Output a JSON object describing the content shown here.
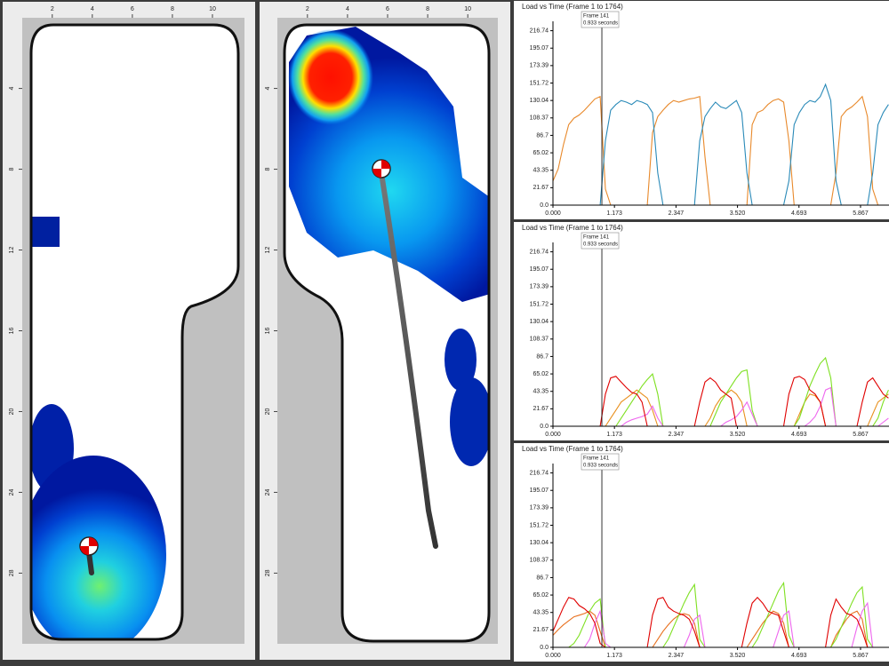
{
  "foot_maps": [
    {
      "xlim": [
        0.5,
        11.6
      ],
      "ylim": [
        0.5,
        31.5
      ],
      "xticks": [
        2,
        4,
        6,
        8,
        10
      ],
      "yticks": [
        4,
        8,
        12,
        16,
        20,
        24,
        28
      ]
    },
    {
      "xlim": [
        0.5,
        11.5
      ],
      "ylim": [
        0.5,
        31.5
      ],
      "xticks": [
        2,
        4,
        6,
        8,
        10
      ],
      "yticks": [
        4,
        8,
        12,
        16,
        20,
        24,
        28
      ]
    }
  ],
  "chart_data": [
    {
      "type": "line",
      "title": "Load vs Time (Frame 1 to 1764)",
      "marker": {
        "x": 0.933,
        "frame_label": "Frame 141",
        "time_label": "0.933 seconds"
      },
      "xlim": [
        0,
        6.41
      ],
      "ylim": [
        0,
        224
      ],
      "xticks": [
        {
          "value": 0,
          "label": "0.000"
        },
        1.173,
        2.347,
        {
          "value": 3.52,
          "label": "3.520"
        },
        4.693,
        5.867
      ],
      "yticks": [
        {
          "value": 0,
          "label": "0.0"
        },
        21.67,
        43.35,
        65.02,
        86.7,
        108.37,
        130.04,
        151.72,
        173.39,
        195.07,
        216.74
      ],
      "grid": false,
      "x": [
        0,
        0.1,
        0.2,
        0.3,
        0.4,
        0.5,
        0.6,
        0.7,
        0.8,
        0.9,
        1,
        1.1,
        1.2,
        1.3,
        1.4,
        1.5,
        1.6,
        1.7,
        1.8,
        1.9,
        2,
        2.1,
        2.2,
        2.3,
        2.4,
        2.5,
        2.6,
        2.7,
        2.8,
        2.9,
        3,
        3.1,
        3.2,
        3.3,
        3.4,
        3.5,
        3.6,
        3.7,
        3.8,
        3.9,
        4,
        4.1,
        4.2,
        4.3,
        4.4,
        4.5,
        4.6,
        4.7,
        4.8,
        4.9,
        5,
        5.1,
        5.2,
        5.3,
        5.4,
        5.5,
        5.6,
        5.7,
        5.8,
        5.9,
        6,
        6.1,
        6.2,
        6.3,
        6.4
      ],
      "series": [
        {
          "color": "#e8892b",
          "values": [
            30,
            45,
            75,
            100,
            108,
            112,
            118,
            125,
            132,
            135,
            20,
            0,
            0,
            0,
            0,
            0,
            0,
            0,
            0,
            90,
            110,
            118,
            125,
            130,
            128,
            130,
            132,
            133,
            135,
            60,
            0,
            0,
            0,
            0,
            0,
            0,
            0,
            0,
            100,
            115,
            118,
            125,
            130,
            132,
            128,
            80,
            0,
            0,
            0,
            0,
            0,
            0,
            0,
            0,
            40,
            110,
            118,
            122,
            128,
            135,
            110,
            20,
            0,
            0,
            0
          ]
        },
        {
          "color": "#2a8ab8",
          "values": [
            0,
            0,
            0,
            0,
            0,
            0,
            0,
            0,
            0,
            0,
            80,
            118,
            125,
            130,
            128,
            125,
            130,
            128,
            125,
            115,
            40,
            0,
            0,
            0,
            0,
            0,
            0,
            0,
            80,
            110,
            120,
            128,
            122,
            120,
            125,
            130,
            115,
            40,
            0,
            0,
            0,
            0,
            0,
            0,
            0,
            30,
            100,
            115,
            125,
            130,
            128,
            135,
            150,
            130,
            30,
            0,
            0,
            0,
            0,
            0,
            0,
            40,
            100,
            115,
            125
          ]
        }
      ]
    },
    {
      "type": "line",
      "title": "Load vs Time (Frame 1 to 1764)",
      "marker": {
        "x": 0.933,
        "frame_label": "Frame 141",
        "time_label": "0.933 seconds"
      },
      "xlim": [
        0,
        6.41
      ],
      "ylim": [
        0,
        224
      ],
      "xticks": [
        {
          "value": 0,
          "label": "0.000"
        },
        1.173,
        2.347,
        {
          "value": 3.52,
          "label": "3.520"
        },
        4.693,
        5.867
      ],
      "yticks": [
        {
          "value": 0,
          "label": "0.0"
        },
        21.67,
        43.35,
        65.02,
        86.7,
        108.37,
        130.04,
        151.72,
        173.39,
        195.07,
        216.74
      ],
      "grid": false,
      "x": [
        0,
        0.1,
        0.2,
        0.3,
        0.4,
        0.5,
        0.6,
        0.7,
        0.8,
        0.9,
        1,
        1.1,
        1.2,
        1.3,
        1.4,
        1.5,
        1.6,
        1.7,
        1.8,
        1.9,
        2,
        2.1,
        2.2,
        2.3,
        2.4,
        2.5,
        2.6,
        2.7,
        2.8,
        2.9,
        3,
        3.1,
        3.2,
        3.3,
        3.4,
        3.5,
        3.6,
        3.7,
        3.8,
        3.9,
        4,
        4.1,
        4.2,
        4.3,
        4.4,
        4.5,
        4.6,
        4.7,
        4.8,
        4.9,
        5,
        5.1,
        5.2,
        5.3,
        5.4,
        5.5,
        5.6,
        5.7,
        5.8,
        5.9,
        6,
        6.1,
        6.2,
        6.3,
        6.4
      ],
      "series": [
        {
          "color": "#e8901e",
          "values": [
            0,
            0,
            0,
            0,
            0,
            0,
            0,
            0,
            0,
            0,
            0,
            10,
            20,
            30,
            35,
            40,
            45,
            40,
            35,
            20,
            0,
            0,
            0,
            0,
            0,
            0,
            0,
            0,
            0,
            0,
            10,
            25,
            35,
            40,
            45,
            40,
            30,
            0,
            0,
            0,
            0,
            0,
            0,
            0,
            0,
            0,
            0,
            15,
            30,
            40,
            38,
            30,
            0,
            0,
            0,
            0,
            0,
            0,
            0,
            0,
            0,
            15,
            30,
            35,
            40
          ]
        },
        {
          "color": "#7ee021",
          "values": [
            0,
            0,
            0,
            0,
            0,
            0,
            0,
            0,
            0,
            0,
            0,
            0,
            0,
            10,
            20,
            30,
            40,
            50,
            58,
            65,
            40,
            0,
            0,
            0,
            0,
            0,
            0,
            0,
            0,
            0,
            0,
            15,
            30,
            40,
            50,
            60,
            68,
            70,
            20,
            0,
            0,
            0,
            0,
            0,
            0,
            0,
            0,
            10,
            30,
            50,
            65,
            78,
            85,
            60,
            0,
            0,
            0,
            0,
            0,
            0,
            0,
            0,
            10,
            30,
            45
          ]
        },
        {
          "color": "#ee66ee",
          "values": [
            0,
            0,
            0,
            0,
            0,
            0,
            0,
            0,
            0,
            0,
            0,
            0,
            0,
            0,
            5,
            8,
            10,
            12,
            15,
            25,
            10,
            0,
            0,
            0,
            0,
            0,
            0,
            0,
            0,
            0,
            0,
            0,
            0,
            5,
            8,
            12,
            20,
            30,
            15,
            0,
            0,
            0,
            0,
            0,
            0,
            0,
            0,
            0,
            0,
            5,
            12,
            25,
            45,
            48,
            0,
            0,
            0,
            0,
            0,
            0,
            0,
            0,
            0,
            5,
            10
          ]
        },
        {
          "color": "#e00000",
          "values": [
            0,
            0,
            0,
            0,
            0,
            0,
            0,
            0,
            0,
            0,
            40,
            60,
            62,
            55,
            48,
            42,
            40,
            30,
            0,
            0,
            0,
            0,
            0,
            0,
            0,
            0,
            0,
            0,
            30,
            55,
            60,
            55,
            45,
            40,
            35,
            0,
            0,
            0,
            0,
            0,
            0,
            0,
            0,
            0,
            0,
            40,
            60,
            62,
            58,
            45,
            40,
            30,
            0,
            0,
            0,
            0,
            0,
            0,
            0,
            30,
            55,
            60,
            50,
            40,
            35
          ]
        }
      ]
    },
    {
      "type": "line",
      "title": "Load vs Time (Frame 1 to 1764)",
      "marker": {
        "x": 0.933,
        "frame_label": "Frame 141",
        "time_label": "0.933 seconds"
      },
      "xlim": [
        0,
        6.41
      ],
      "ylim": [
        0,
        224
      ],
      "xticks": [
        {
          "value": 0,
          "label": "0.000"
        },
        1.173,
        2.347,
        {
          "value": 3.52,
          "label": "3.520"
        },
        4.693,
        5.867
      ],
      "yticks": [
        {
          "value": 0,
          "label": "0.0"
        },
        21.67,
        43.35,
        65.02,
        86.7,
        108.37,
        130.04,
        151.72,
        173.39,
        195.07,
        216.74
      ],
      "grid": false,
      "x": [
        0,
        0.1,
        0.2,
        0.3,
        0.4,
        0.5,
        0.6,
        0.7,
        0.8,
        0.9,
        1,
        1.1,
        1.2,
        1.3,
        1.4,
        1.5,
        1.6,
        1.7,
        1.8,
        1.9,
        2,
        2.1,
        2.2,
        2.3,
        2.4,
        2.5,
        2.6,
        2.7,
        2.8,
        2.9,
        3,
        3.1,
        3.2,
        3.3,
        3.4,
        3.5,
        3.6,
        3.7,
        3.8,
        3.9,
        4,
        4.1,
        4.2,
        4.3,
        4.4,
        4.5,
        4.6,
        4.7,
        4.8,
        4.9,
        5,
        5.1,
        5.2,
        5.3,
        5.4,
        5.5,
        5.6,
        5.7,
        5.8,
        5.9,
        6,
        6.1,
        6.2,
        6.3,
        6.4
      ],
      "series": [
        {
          "color": "#e8701e",
          "values": [
            15,
            22,
            28,
            33,
            38,
            40,
            42,
            45,
            40,
            20,
            0,
            0,
            0,
            0,
            0,
            0,
            0,
            0,
            0,
            0,
            10,
            20,
            28,
            35,
            40,
            42,
            40,
            30,
            0,
            0,
            0,
            0,
            0,
            0,
            0,
            0,
            0,
            0,
            10,
            20,
            30,
            38,
            45,
            42,
            30,
            0,
            0,
            0,
            0,
            0,
            0,
            0,
            0,
            0,
            15,
            25,
            35,
            42,
            45,
            35,
            0,
            0,
            0,
            0,
            0
          ]
        },
        {
          "color": "#7ee021",
          "values": [
            0,
            0,
            0,
            0,
            5,
            15,
            30,
            45,
            55,
            60,
            0,
            0,
            0,
            0,
            0,
            0,
            0,
            0,
            0,
            0,
            0,
            0,
            10,
            25,
            40,
            55,
            68,
            78,
            10,
            0,
            0,
            0,
            0,
            0,
            0,
            0,
            0,
            0,
            0,
            10,
            25,
            40,
            55,
            70,
            80,
            15,
            0,
            0,
            0,
            0,
            0,
            0,
            0,
            0,
            10,
            25,
            40,
            55,
            68,
            75,
            10,
            0,
            0,
            0,
            0
          ]
        },
        {
          "color": "#ee66ee",
          "values": [
            0,
            0,
            0,
            0,
            0,
            0,
            0,
            10,
            30,
            45,
            5,
            0,
            0,
            0,
            0,
            0,
            0,
            0,
            0,
            0,
            0,
            0,
            0,
            0,
            0,
            0,
            15,
            35,
            40,
            0,
            0,
            0,
            0,
            0,
            0,
            0,
            0,
            0,
            0,
            0,
            0,
            0,
            0,
            20,
            40,
            45,
            0,
            0,
            0,
            0,
            0,
            0,
            0,
            0,
            0,
            0,
            0,
            0,
            25,
            45,
            55,
            0,
            0,
            0,
            0
          ]
        },
        {
          "color": "#e00000",
          "values": [
            20,
            35,
            50,
            62,
            60,
            52,
            48,
            42,
            30,
            5,
            0,
            0,
            0,
            0,
            0,
            0,
            0,
            0,
            0,
            40,
            60,
            62,
            50,
            45,
            42,
            40,
            35,
            20,
            0,
            0,
            0,
            0,
            0,
            0,
            0,
            0,
            0,
            30,
            55,
            62,
            55,
            45,
            42,
            40,
            20,
            0,
            0,
            0,
            0,
            0,
            0,
            0,
            0,
            40,
            60,
            50,
            42,
            40,
            35,
            20,
            0,
            0,
            0,
            0,
            0
          ]
        }
      ]
    }
  ]
}
